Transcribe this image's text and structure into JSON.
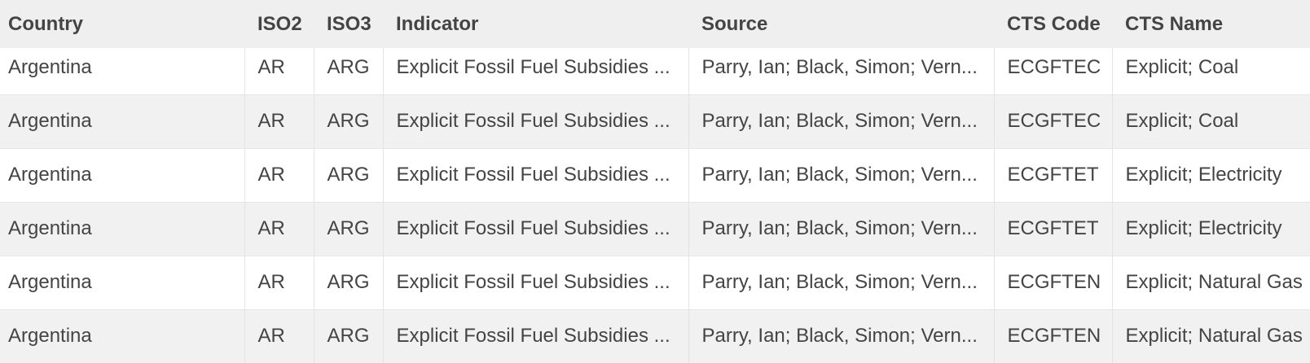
{
  "table": {
    "columns": [
      "Country",
      "ISO2",
      "ISO3",
      "Indicator",
      "Source",
      "CTS Code",
      "CTS Name"
    ],
    "rows": [
      [
        "Argentina",
        "AR",
        "ARG",
        "Explicit Fossil Fuel Subsidies ...",
        "Parry, Ian; Black, Simon; Vern...",
        "ECGFTEC",
        "Explicit; Coal"
      ],
      [
        "Argentina",
        "AR",
        "ARG",
        "Explicit Fossil Fuel Subsidies ...",
        "Parry, Ian; Black, Simon; Vern...",
        "ECGFTEC",
        "Explicit; Coal"
      ],
      [
        "Argentina",
        "AR",
        "ARG",
        "Explicit Fossil Fuel Subsidies ...",
        "Parry, Ian; Black, Simon; Vern...",
        "ECGFTET",
        "Explicit; Electricity"
      ],
      [
        "Argentina",
        "AR",
        "ARG",
        "Explicit Fossil Fuel Subsidies ...",
        "Parry, Ian; Black, Simon; Vern...",
        "ECGFTET",
        "Explicit; Electricity"
      ],
      [
        "Argentina",
        "AR",
        "ARG",
        "Explicit Fossil Fuel Subsidies ...",
        "Parry, Ian; Black, Simon; Vern...",
        "ECGFTEN",
        "Explicit; Natural Gas"
      ],
      [
        "Argentina",
        "AR",
        "ARG",
        "Explicit Fossil Fuel Subsidies ...",
        "Parry, Ian; Black, Simon; Vern...",
        "ECGFTEN",
        "Explicit; Natural Gas"
      ]
    ]
  }
}
